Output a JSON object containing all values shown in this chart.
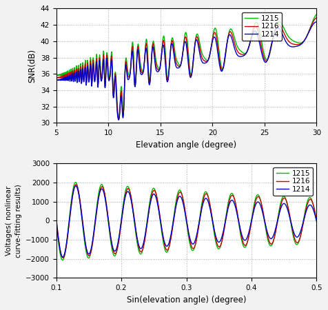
{
  "top_plot": {
    "xlabel": "Elevation angle (degree)",
    "ylabel": "SNR(dB)",
    "xlim": [
      5,
      30
    ],
    "ylim": [
      30,
      44
    ],
    "yticks": [
      30,
      32,
      34,
      36,
      38,
      40,
      42,
      44
    ],
    "xticks": [
      5,
      10,
      15,
      20,
      25,
      30
    ],
    "legend_labels": [
      "1214",
      "1215",
      "1216"
    ],
    "colors": [
      "#0000cc",
      "#00bb00",
      "#cc0000"
    ]
  },
  "bottom_plot": {
    "xlabel": "Sin(elevation angle) (degree)",
    "ylabel": "Voltages( nonlinear\ncurve-fitting results)",
    "xlim": [
      0.1,
      0.5
    ],
    "ylim": [
      -3000,
      3000
    ],
    "yticks": [
      -3000,
      -2000,
      -1000,
      0,
      1000,
      2000,
      3000
    ],
    "xticks": [
      0.1,
      0.2,
      0.3,
      0.4,
      0.5
    ],
    "legend_labels": [
      "1214",
      "1215",
      "1216"
    ],
    "colors": [
      "#0000cc",
      "#00bb00",
      "#cc0000"
    ]
  },
  "bg_color": "#f2f2f2"
}
